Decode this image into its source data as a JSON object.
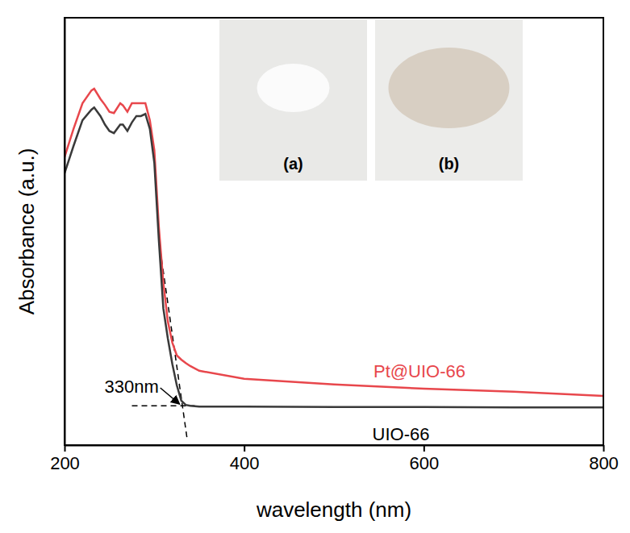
{
  "chart_data": {
    "type": "line",
    "x_label": "wavelength (nm)",
    "y_label": "Absorbance (a.u.)",
    "x": [
      200,
      210,
      220,
      230,
      233,
      240,
      245,
      250,
      255,
      262,
      265,
      270,
      275,
      280,
      285,
      290,
      295,
      300,
      305,
      310,
      315,
      320,
      325,
      330,
      335,
      340,
      350,
      400,
      500,
      600,
      700,
      800
    ],
    "series": [
      {
        "name": "Pt@UIO-66",
        "color": "#e8474c",
        "values": [
          67.4,
          74,
          80,
          83,
          83.4,
          81,
          79.6,
          78,
          77.7,
          80,
          79.5,
          78,
          80,
          80,
          80,
          80,
          76,
          69,
          51,
          38,
          29,
          24,
          21,
          20,
          19.2,
          18.5,
          17.4,
          15.5,
          14.2,
          13.2,
          12.5,
          11.5
        ]
      },
      {
        "name": "UIO-66",
        "color": "#3a3a3a",
        "values": [
          63.6,
          70,
          76,
          78.5,
          79,
          77,
          75,
          73.5,
          73,
          75,
          75,
          73.5,
          75.5,
          77,
          77,
          77.5,
          74,
          66,
          48,
          32,
          25,
          19,
          14,
          10.4,
          9.4,
          9.2,
          9.0,
          9.0,
          8.9,
          8.9,
          8.8,
          8.8
        ]
      }
    ],
    "xlim": [
      200,
      800
    ],
    "xticks": [
      200,
      400,
      600,
      800
    ],
    "ylim": [
      0,
      100
    ],
    "tick_labels": "x",
    "annotations": [
      {
        "text": "330nm",
        "x": 330,
        "y": 9.2
      }
    ],
    "tangents": [
      {
        "x": [
          275,
          345
        ],
        "y": [
          9.2,
          9.2
        ],
        "line_style": "dashed"
      },
      {
        "x": [
          305,
          336.6
        ],
        "y": [
          48,
          1.3
        ],
        "line_style": "dashed"
      }
    ],
    "insets": [
      {
        "label": "(a)"
      },
      {
        "label": "(b)"
      }
    ]
  }
}
